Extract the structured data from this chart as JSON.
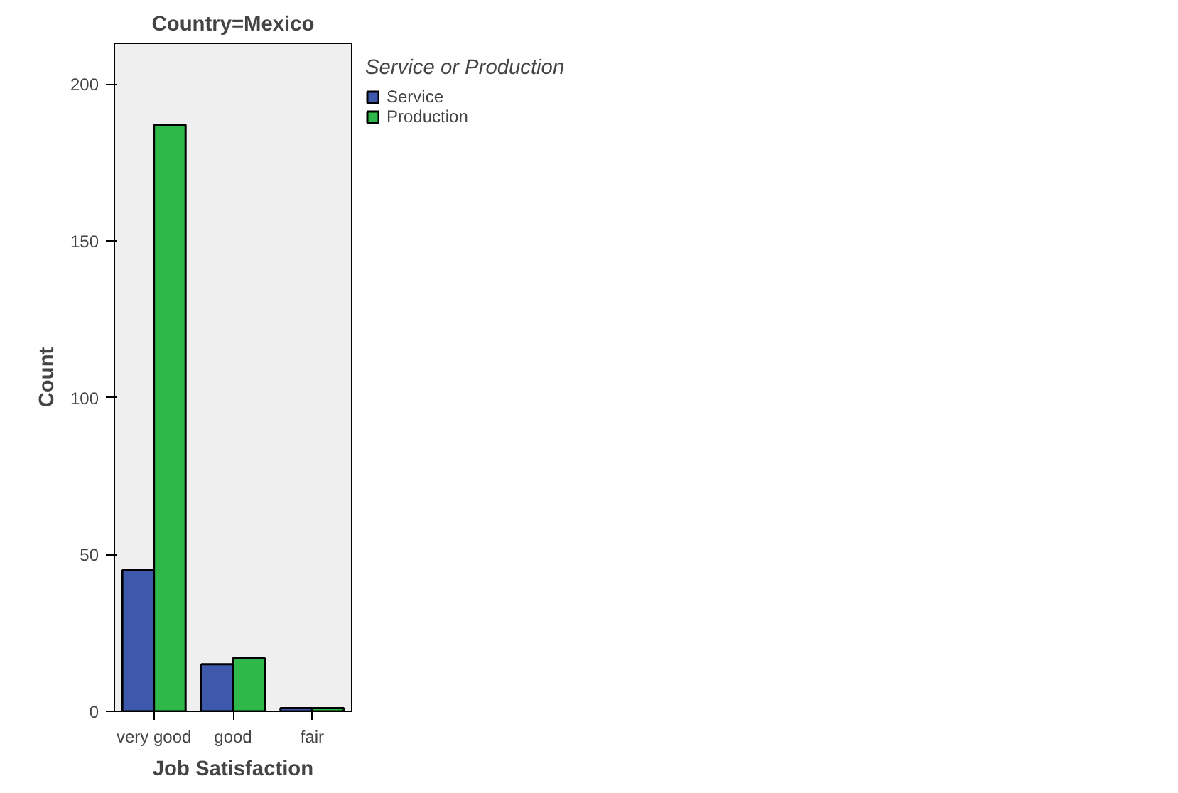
{
  "chart_data": {
    "type": "bar",
    "title": "Country=Mexico",
    "xlabel": "Job Satisfaction",
    "ylabel": "Count",
    "legend_title": "Service or Production",
    "categories": [
      "very good",
      "good",
      "fair"
    ],
    "series": [
      {
        "name": "Service",
        "color": "#3e58ac",
        "values": [
          45,
          15,
          1
        ]
      },
      {
        "name": "Production",
        "color": "#2fb84a",
        "values": [
          187,
          17,
          1
        ]
      }
    ],
    "ylim": [
      0,
      213
    ],
    "yticks": [
      0,
      50,
      100,
      150,
      200
    ],
    "grid": false,
    "legend": "right"
  }
}
